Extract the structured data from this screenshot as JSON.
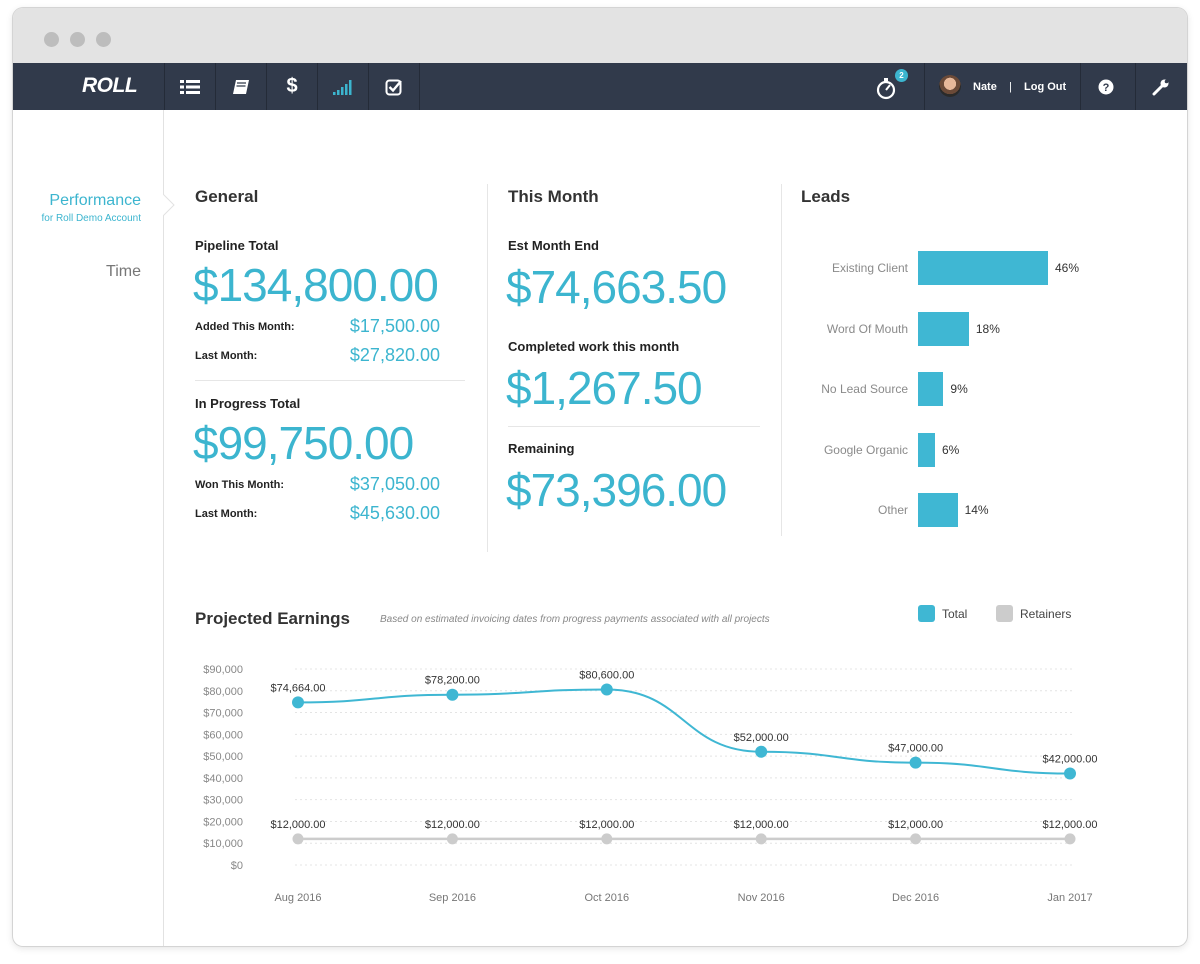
{
  "app": {
    "logo": "ROLL"
  },
  "navbar": {
    "items": [
      {
        "icon": "list-icon"
      },
      {
        "icon": "book-icon"
      },
      {
        "icon": "dollar-icon",
        "symbol": "$"
      },
      {
        "icon": "signal-bars-icon"
      },
      {
        "icon": "checkbox-icon"
      }
    ],
    "timer_badge": "2",
    "user_name": "Nate",
    "divider": "|",
    "logout_label": "Log Out"
  },
  "sidebar": {
    "active_label": "Performance",
    "active_sub": "for Roll Demo Account",
    "time_label": "Time"
  },
  "general": {
    "title": "General",
    "pipeline_label": "Pipeline Total",
    "pipeline_total": "$134,800.00",
    "added_label": "Added This Month:",
    "added_value": "$17,500.00",
    "last_month_label": "Last Month:",
    "last_month_value": "$27,820.00",
    "in_progress_label": "In Progress Total",
    "in_progress_total": "$99,750.00",
    "won_label": "Won This Month:",
    "won_value": "$37,050.00",
    "last_month_label2": "Last Month:",
    "last_month_value2": "$45,630.00"
  },
  "this_month": {
    "title": "This Month",
    "est_label": "Est Month End",
    "est_value": "$74,663.50",
    "completed_label": "Completed work this month",
    "completed_value": "$1,267.50",
    "remaining_label": "Remaining",
    "remaining_value": "$73,396.00"
  },
  "leads": {
    "title": "Leads",
    "items": [
      {
        "label": "Existing Client",
        "pct": "46%",
        "value": 46
      },
      {
        "label": "Word Of Mouth",
        "pct": "18%",
        "value": 18
      },
      {
        "label": "No Lead Source",
        "pct": "9%",
        "value": 9
      },
      {
        "label": "Google Organic",
        "pct": "6%",
        "value": 6
      },
      {
        "label": "Other",
        "pct": "14%",
        "value": 14
      }
    ],
    "accent": "#3fb7d3"
  },
  "projected": {
    "title": "Projected Earnings",
    "subtitle": "Based on estimated invoicing dates from progress payments associated with all projects",
    "legend": [
      {
        "name": "Total",
        "color": "#3fb7d3"
      },
      {
        "name": "Retainers",
        "color": "#cccccc"
      }
    ]
  },
  "chart_data": {
    "type": "line",
    "x": [
      "Aug 2016",
      "Sep 2016",
      "Oct 2016",
      "Nov 2016",
      "Dec 2016",
      "Jan 2017"
    ],
    "y_ticks": [
      "$90,000",
      "$80,000",
      "$70,000",
      "$60,000",
      "$50,000",
      "$40,000",
      "$30,000",
      "$20,000",
      "$10,000",
      "$0"
    ],
    "ylim": [
      0,
      90000
    ],
    "series": [
      {
        "name": "Total",
        "color": "#3fb7d3",
        "values": [
          74664,
          78200,
          80600,
          52000,
          47000,
          42000
        ],
        "labels": [
          "$74,664.00",
          "$78,200.00",
          "$80,600.00",
          "$52,000.00",
          "$47,000.00",
          "$42,000.00"
        ]
      },
      {
        "name": "Retainers",
        "color": "#cccccc",
        "values": [
          12000,
          12000,
          12000,
          12000,
          12000,
          12000
        ],
        "labels": [
          "$12,000.00",
          "$12,000.00",
          "$12,000.00",
          "$12,000.00",
          "$12,000.00",
          "$12,000.00"
        ]
      }
    ],
    "grid": true,
    "legend_position": "top-right"
  }
}
